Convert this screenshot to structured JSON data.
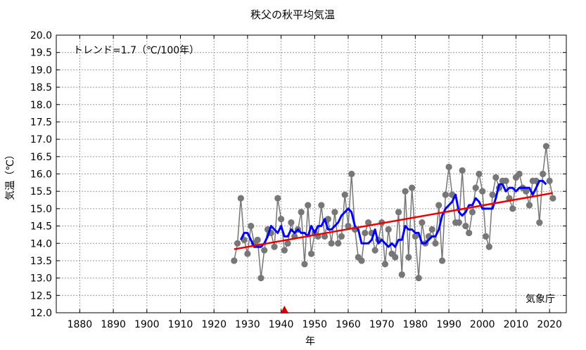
{
  "chart_data": {
    "type": "line",
    "title": "秩父の秋平均気温",
    "xlabel": "年",
    "ylabel": "気温（℃）",
    "xlim": [
      1873,
      2025
    ],
    "ylim": [
      12.0,
      20.0
    ],
    "x_ticks": [
      "1880",
      "1890",
      "1900",
      "1910",
      "1920",
      "1930",
      "1940",
      "1950",
      "1960",
      "1970",
      "1980",
      "1990",
      "2000",
      "2010",
      "2020"
    ],
    "y_ticks": [
      "12.0",
      "12.5",
      "13.0",
      "13.5",
      "14.0",
      "14.5",
      "15.0",
      "15.5",
      "16.0",
      "16.5",
      "17.0",
      "17.5",
      "18.0",
      "18.5",
      "19.0",
      "19.5",
      "20.0"
    ],
    "grid": true,
    "trend_label": "トレンド=1.7（℃/100年）",
    "source": "気象庁",
    "marker_year": 1941,
    "colors": {
      "annual": "#777777",
      "moving_average": "#0000ff",
      "trend": "#ee0000",
      "marker": "#cc0000"
    },
    "series": [
      {
        "role": "annual",
        "x": [
          1926,
          1927,
          1928,
          1929,
          1930,
          1931,
          1932,
          1933,
          1934,
          1935,
          1936,
          1937,
          1938,
          1939,
          1940,
          1941,
          1942,
          1943,
          1944,
          1945,
          1946,
          1947,
          1948,
          1949,
          1950,
          1951,
          1952,
          1953,
          1954,
          1955,
          1956,
          1957,
          1958,
          1959,
          1960,
          1961,
          1962,
          1963,
          1964,
          1965,
          1966,
          1967,
          1968,
          1969,
          1970,
          1971,
          1972,
          1973,
          1974,
          1975,
          1976,
          1977,
          1978,
          1979,
          1980,
          1981,
          1982,
          1983,
          1984,
          1985,
          1986,
          1987,
          1988,
          1989,
          1990,
          1991,
          1992,
          1993,
          1994,
          1995,
          1996,
          1997,
          1998,
          1999,
          2000,
          2001,
          2002,
          2003,
          2004,
          2005,
          2006,
          2007,
          2008,
          2009,
          2010,
          2011,
          2012,
          2013,
          2014,
          2015,
          2016,
          2017,
          2018,
          2019,
          2020,
          2021
        ],
        "y": [
          13.5,
          14.0,
          15.3,
          14.1,
          13.7,
          14.5,
          14.0,
          14.1,
          13.0,
          13.8,
          14.4,
          14.3,
          13.9,
          15.3,
          14.7,
          13.8,
          14.0,
          14.6,
          14.2,
          14.4,
          14.9,
          13.4,
          15.1,
          13.7,
          14.3,
          14.2,
          15.1,
          14.2,
          14.7,
          14.0,
          14.9,
          14.0,
          14.2,
          15.4,
          14.5,
          16.0,
          14.4,
          13.6,
          13.5,
          14.3,
          14.6,
          14.3,
          13.8,
          14.1,
          14.6,
          13.4,
          14.4,
          13.7,
          13.6,
          14.9,
          13.1,
          15.5,
          13.6,
          15.6,
          14.2,
          13.0,
          14.6,
          14.0,
          14.2,
          14.4,
          14.0,
          15.1,
          13.5,
          15.4,
          16.2,
          15.4,
          14.6,
          14.6,
          16.1,
          14.5,
          14.3,
          14.9,
          15.6,
          16.0,
          15.5,
          14.2,
          13.9,
          15.4,
          15.9,
          15.6,
          15.8,
          15.8,
          15.3,
          15.0,
          15.9,
          16.0,
          15.6,
          15.5,
          15.1,
          15.8,
          15.8,
          14.6,
          16.0,
          16.8,
          15.8,
          15.3
        ]
      },
      {
        "role": "moving_average",
        "x": [
          1928,
          1929,
          1930,
          1931,
          1932,
          1933,
          1934,
          1935,
          1936,
          1937,
          1938,
          1939,
          1940,
          1941,
          1942,
          1943,
          1944,
          1945,
          1946,
          1947,
          1948,
          1949,
          1950,
          1951,
          1952,
          1953,
          1954,
          1955,
          1956,
          1957,
          1958,
          1959,
          1960,
          1961,
          1962,
          1963,
          1964,
          1965,
          1966,
          1967,
          1968,
          1969,
          1970,
          1971,
          1972,
          1973,
          1974,
          1975,
          1976,
          1977,
          1978,
          1979,
          1980,
          1981,
          1982,
          1983,
          1984,
          1985,
          1986,
          1987,
          1988,
          1989,
          1990,
          1991,
          1992,
          1993,
          1994,
          1995,
          1996,
          1997,
          1998,
          1999,
          2000,
          2001,
          2002,
          2003,
          2004,
          2005,
          2006,
          2007,
          2008,
          2009,
          2010,
          2011,
          2012,
          2013,
          2014,
          2015,
          2016,
          2017,
          2018,
          2019
        ],
        "y": [
          14.1,
          14.3,
          14.3,
          14.1,
          13.9,
          13.9,
          13.9,
          14.0,
          14.2,
          14.5,
          14.4,
          14.3,
          14.5,
          14.2,
          14.2,
          14.4,
          14.3,
          14.4,
          14.3,
          14.3,
          14.2,
          14.5,
          14.3,
          14.5,
          14.5,
          14.7,
          14.4,
          14.4,
          14.5,
          14.6,
          14.8,
          14.9,
          15.0,
          14.9,
          14.5,
          14.4,
          14.0,
          14.0,
          14.0,
          14.1,
          14.4,
          14.0,
          14.1,
          14.0,
          13.9,
          14.0,
          13.9,
          14.1,
          14.1,
          14.5,
          14.4,
          14.4,
          14.3,
          14.3,
          14.0,
          14.0,
          14.1,
          14.2,
          14.2,
          14.4,
          14.8,
          15.0,
          15.1,
          15.2,
          15.4,
          14.9,
          14.8,
          14.9,
          15.1,
          15.1,
          15.3,
          15.2,
          15.0,
          15.0,
          15.0,
          15.0,
          15.3,
          15.7,
          15.7,
          15.5,
          15.6,
          15.6,
          15.5,
          15.6,
          15.6,
          15.6,
          15.6,
          15.4,
          15.6,
          15.8,
          15.8,
          15.7
        ]
      },
      {
        "role": "trend",
        "x": [
          1926,
          2021
        ],
        "y": [
          13.83,
          15.45
        ]
      }
    ]
  }
}
